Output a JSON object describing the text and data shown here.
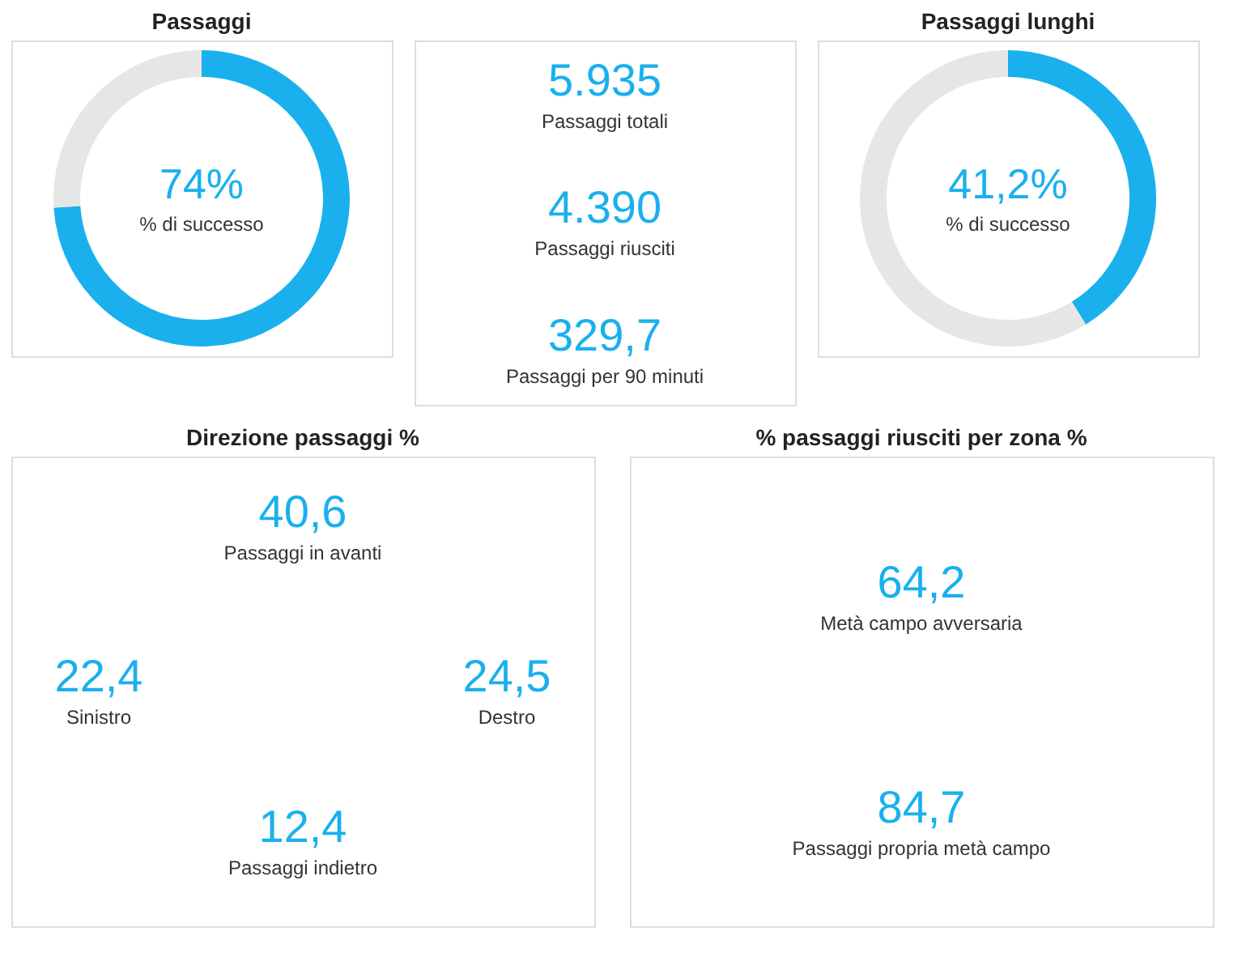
{
  "chart_data": [
    {
      "type": "donut",
      "title": "Passaggi",
      "categories": [
        null,
        null
      ],
      "values": [
        74,
        26
      ],
      "colors": [
        "#1ab0ed",
        "#e6e6e6"
      ],
      "annotations": [
        "74%",
        "% di successo"
      ]
    },
    {
      "type": "other",
      "annotations": [
        "5.935",
        "Passaggi totali",
        "4.390",
        "Passaggi riusciti",
        "329,7",
        "Passaggi per 90 minuti"
      ]
    },
    {
      "type": "donut",
      "title": "Passaggi lunghi",
      "categories": [
        null,
        null
      ],
      "values": [
        41.2,
        58.8
      ],
      "colors": [
        "#1ab0ed",
        "#e6e6e6"
      ],
      "annotations": [
        "41,2%",
        "% di successo"
      ]
    },
    {
      "type": "other",
      "title": "Direzione passaggi %",
      "annotations": [
        "40,6",
        "Passaggi in avanti",
        "22,4",
        "Sinistro",
        "24,5",
        "Destro",
        "12,4",
        "Passaggi indietro"
      ]
    },
    {
      "type": "other",
      "title": "% passaggi riusciti per zona %",
      "annotations": [
        "64,2",
        "Metà campo avversaria",
        "84,7",
        "Passaggi propria metà campo"
      ]
    }
  ]
}
